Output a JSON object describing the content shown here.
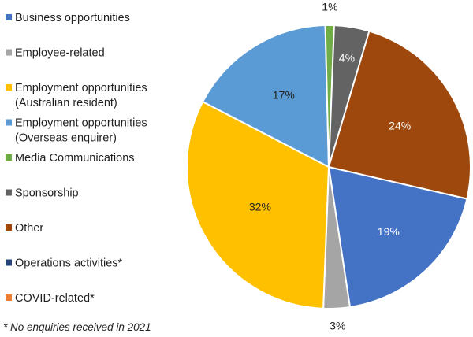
{
  "chart_data": {
    "type": "pie",
    "title": "",
    "categories": [
      "Business opportunities",
      "Employee-related",
      "Employment opportunities (Australian resident)",
      "Employment opportunities (Overseas enquirer)",
      "Media Communications",
      "Sponsorship",
      "Other",
      "Operations activities*",
      "COVID-related*"
    ],
    "values": [
      19,
      3,
      32,
      17,
      1,
      4,
      24,
      0,
      0
    ],
    "value_labels": [
      "19%",
      "3%",
      "32%",
      "17%",
      "1%",
      "4%",
      "24%",
      "",
      ""
    ],
    "colors": [
      "#4472C4",
      "#A5A5A5",
      "#FFC000",
      "#5B9BD5",
      "#70AD47",
      "#636363",
      "#9E480E",
      "#264478",
      "#ED7D31"
    ],
    "label_colors": [
      "#ffffff",
      "#1f1f1f",
      "#1f1f1f",
      "#1f1f1f",
      "#1f1f1f",
      "#ffffff",
      "#ffffff",
      "#1f1f1f",
      "#1f1f1f"
    ],
    "legend": {
      "position": "left",
      "entries": [
        [
          "Business opportunities"
        ],
        [
          "Employee-related"
        ],
        [
          "Employment opportunities",
          "(Australian resident)"
        ],
        [
          "Employment opportunities",
          "(Overseas enquirer)"
        ],
        [
          "Media Communications"
        ],
        [
          "Sponsorship"
        ],
        [
          "Other"
        ],
        [
          "Operations activities*"
        ],
        [
          "COVID-related*"
        ]
      ]
    },
    "footnote": "* No enquiries received in 2021"
  }
}
